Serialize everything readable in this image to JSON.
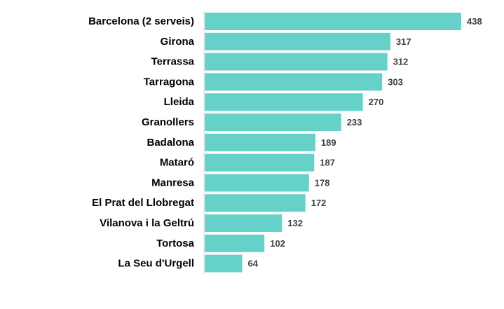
{
  "chart_data": {
    "type": "bar",
    "orientation": "horizontal",
    "categories": [
      "Barcelona (2 serveis)",
      "Girona",
      "Terrassa",
      "Tarragona",
      "Lleida",
      "Granollers",
      "Badalona",
      "Mataró",
      "Manresa",
      "El Prat del Llobregat",
      "Vilanova i la Geltrú",
      "Tortosa",
      "La Seu d'Urgell"
    ],
    "values": [
      438,
      317,
      312,
      303,
      270,
      233,
      189,
      187,
      178,
      172,
      132,
      102,
      64
    ],
    "title": "",
    "xlabel": "",
    "ylabel": "",
    "xlim": [
      0,
      438
    ],
    "grid": false,
    "legend": "none",
    "data_labels": true,
    "colors": {
      "bar": "#66D1C9",
      "axis": "#D9D9D9",
      "label": "#000000",
      "value_label": "#404040"
    }
  }
}
